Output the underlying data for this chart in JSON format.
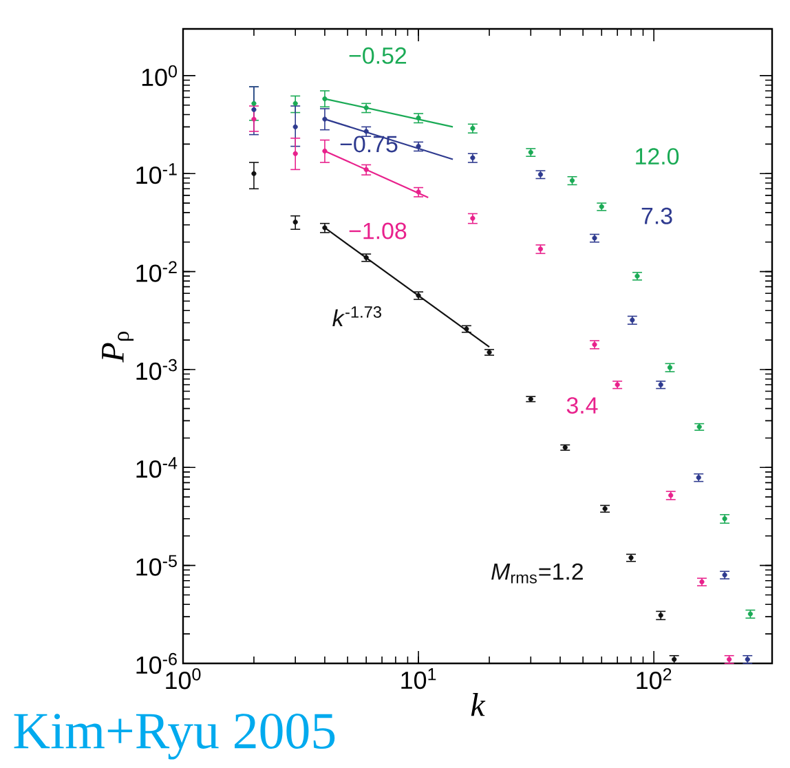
{
  "chart_data": {
    "type": "scatter",
    "xlabel": "k",
    "ylabel": "*P*$_{ρ}$",
    "log": "xy",
    "grid": false,
    "xlim": [
      1,
      318
    ],
    "ylim": [
      1e-06,
      3
    ],
    "xticks": [
      {
        "value": 1,
        "label": "10$^{0}$"
      },
      {
        "value": 10,
        "label": "10$^{1}$"
      },
      {
        "value": 100,
        "label": "10$^{2}$"
      }
    ],
    "yticks": [
      {
        "value": 1e-06,
        "label": "10$^{-6}$"
      },
      {
        "value": 1e-05,
        "label": "10$^{-5}$"
      },
      {
        "value": 0.0001,
        "label": "10$^{-4}$"
      },
      {
        "value": 0.001,
        "label": "10$^{-3}$"
      },
      {
        "value": 0.01,
        "label": "10$^{-2}$"
      },
      {
        "value": 0.1,
        "label": "10$^{-1}$"
      },
      {
        "value": 1,
        "label": "10$^{0}$"
      }
    ],
    "series": [
      {
        "name": "12.0",
        "marker": "circle",
        "color": "#1aaa55",
        "x": [
          2,
          3,
          4,
          6,
          10,
          17,
          30,
          45,
          60,
          85,
          117,
          156,
          200,
          257
        ],
        "values": [
          0.52,
          0.52,
          0.58,
          0.47,
          0.37,
          0.29,
          0.165,
          0.085,
          0.046,
          0.009,
          0.00105,
          0.00026,
          3e-05,
          3.2e-06
        ],
        "errors": [
          [
            0.35,
            0.77
          ],
          [
            0.42,
            0.62
          ],
          [
            0.48,
            0.7
          ],
          0.05,
          0.04,
          0.03,
          0.015,
          0.008,
          0.004,
          0.0008,
          0.0001,
          2e-05,
          3e-06,
          3e-07
        ]
      },
      {
        "name": "7.3",
        "marker": "circle",
        "color": "#2e3a8f",
        "x": [
          2,
          3,
          4,
          6,
          10,
          17,
          33,
          56,
          81,
          107,
          155,
          200,
          250
        ],
        "values": [
          0.45,
          0.3,
          0.36,
          0.27,
          0.19,
          0.145,
          0.098,
          0.022,
          0.0032,
          0.0007,
          7.9e-05,
          8e-06,
          1.1e-06
        ],
        "errors": [
          [
            0.25,
            0.77
          ],
          [
            0.19,
            0.49
          ],
          [
            0.28,
            0.46
          ],
          0.03,
          0.02,
          0.015,
          0.009,
          0.002,
          0.0003,
          6e-05,
          7e-06,
          7e-07,
          1e-07
        ]
      },
      {
        "name": "3.4",
        "marker": "circle",
        "color": "#e8218c",
        "x": [
          2,
          3,
          4,
          6,
          10,
          17,
          33,
          56,
          70,
          118,
          160,
          209
        ],
        "values": [
          0.36,
          0.16,
          0.17,
          0.11,
          0.065,
          0.035,
          0.017,
          0.0018,
          0.0007,
          5.2e-05,
          6.8e-06,
          1.1e-06
        ],
        "errors": [
          [
            0.27,
            0.49
          ],
          [
            0.11,
            0.23
          ],
          [
            0.13,
            0.22
          ],
          0.013,
          0.007,
          0.004,
          0.0017,
          0.00017,
          6e-05,
          5e-06,
          6e-07,
          1e-07
        ]
      },
      {
        "name": "*M*$_{rms}$=1.2",
        "marker": "circle",
        "color": "#111111",
        "x": [
          2,
          3,
          4,
          6,
          10,
          16,
          20,
          30,
          42,
          62,
          80,
          107,
          122
        ],
        "values": [
          0.1,
          0.032,
          0.028,
          0.0139,
          0.0057,
          0.0026,
          0.0015,
          0.0005,
          0.00016,
          3.8e-05,
          1.2e-05,
          3.1e-06,
          1.1e-06
        ],
        "errors": [
          [
            0.07,
            0.13
          ],
          [
            0.027,
            0.037
          ],
          0.003,
          0.0012,
          0.0005,
          0.0002,
          0.0001,
          3e-05,
          1e-05,
          3e-06,
          1e-06,
          3e-07,
          1e-07
        ]
      },
      {
        "name": "−0.52",
        "type": "line",
        "marker": "none",
        "color": "#1aaa55",
        "x": [
          4,
          14
        ],
        "values": [
          0.58,
          0.3
        ]
      },
      {
        "name": "−0.75",
        "type": "line",
        "marker": "none",
        "color": "#2e3a8f",
        "x": [
          4,
          14
        ],
        "values": [
          0.36,
          0.14
        ]
      },
      {
        "name": "−1.08",
        "type": "line",
        "marker": "none",
        "color": "#e8218c",
        "x": [
          4,
          11
        ],
        "values": [
          0.17,
          0.057
        ]
      },
      {
        "name": "*k*$^{-1.73}$",
        "type": "line",
        "marker": "none",
        "color": "#111111",
        "x": [
          4,
          20
        ],
        "values": [
          0.028,
          0.0017
        ]
      }
    ],
    "annotations": [
      "Kim+Ryu 2005"
    ]
  }
}
